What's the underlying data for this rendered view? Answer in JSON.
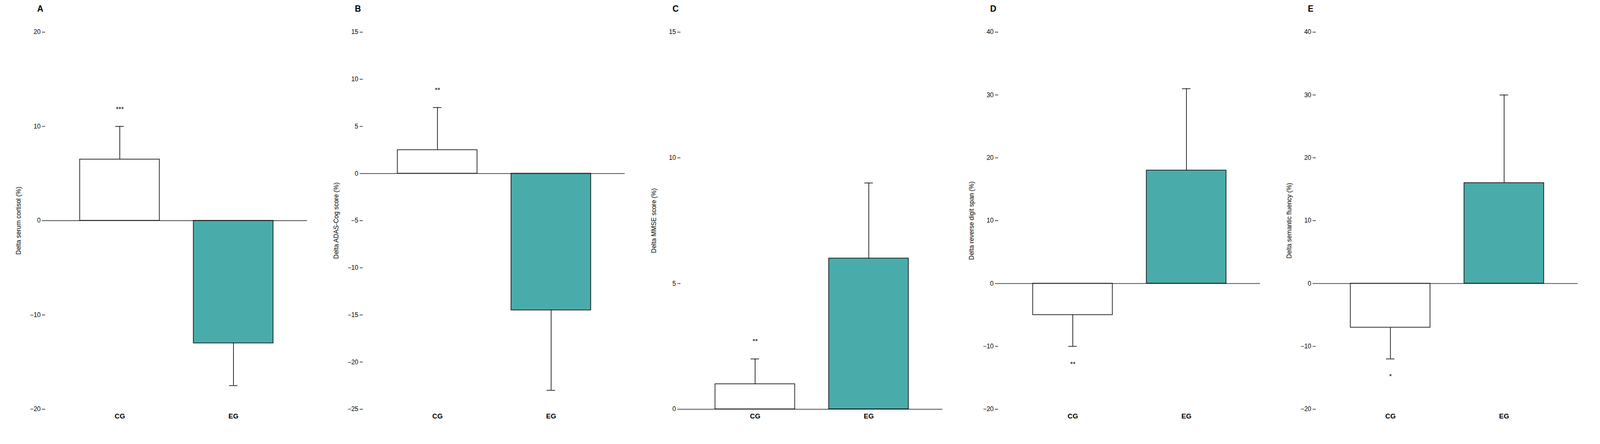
{
  "chart_data": [
    {
      "type": "bar",
      "title": "A",
      "ylabel": "Delta serum cortisol (%)",
      "categories": [
        "CG",
        "EG"
      ],
      "values": [
        6.5,
        -13.0
      ],
      "errors": [
        3.5,
        4.5
      ],
      "colors": [
        "#ffffff",
        "#4aacaa"
      ],
      "annotations": [
        {
          "x": "CG",
          "text": "***"
        }
      ],
      "ylim": [
        -20,
        20
      ],
      "yticks": [
        -20,
        -10,
        0,
        10,
        20
      ],
      "grid": false
    },
    {
      "type": "bar",
      "title": "B",
      "ylabel": "Delta ADAS-Cog score (%)",
      "categories": [
        "CG",
        "EG"
      ],
      "values": [
        2.5,
        -14.5
      ],
      "errors": [
        4.5,
        8.5
      ],
      "colors": [
        "#ffffff",
        "#4aacaa"
      ],
      "annotations": [
        {
          "x": "CG",
          "text": "**"
        }
      ],
      "ylim": [
        -25,
        15
      ],
      "yticks": [
        -25,
        -20,
        -15,
        -10,
        -5,
        0,
        5,
        10,
        15
      ],
      "grid": false
    },
    {
      "type": "bar",
      "title": "C",
      "ylabel": "Delta MMSE score (%)",
      "categories": [
        "CG",
        "EG"
      ],
      "values": [
        1.0,
        6.0
      ],
      "errors": [
        1.0,
        3.0
      ],
      "colors": [
        "#ffffff",
        "#4aacaa"
      ],
      "annotations": [
        {
          "x": "CG",
          "text": "**"
        }
      ],
      "ylim": [
        0,
        15
      ],
      "yticks": [
        0,
        5,
        10,
        15
      ],
      "grid": false
    },
    {
      "type": "bar",
      "title": "D",
      "ylabel": "Delta reverse digit span (%)",
      "categories": [
        "CG",
        "EG"
      ],
      "values": [
        -5.0,
        18.0
      ],
      "errors": [
        5.0,
        13.0
      ],
      "colors": [
        "#ffffff",
        "#4aacaa"
      ],
      "annotations": [
        {
          "x": "CG",
          "text": "**"
        }
      ],
      "ylim": [
        -20,
        40
      ],
      "yticks": [
        -20,
        -10,
        0,
        10,
        20,
        30,
        40
      ],
      "grid": false
    },
    {
      "type": "bar",
      "title": "E",
      "ylabel": "Delta semantic fluency (%)",
      "categories": [
        "CG",
        "EG"
      ],
      "values": [
        -7.0,
        16.0
      ],
      "errors": [
        5.0,
        14.0
      ],
      "colors": [
        "#ffffff",
        "#4aacaa"
      ],
      "annotations": [
        {
          "x": "CG",
          "text": "*"
        }
      ],
      "ylim": [
        -20,
        40
      ],
      "yticks": [
        -20,
        -10,
        0,
        10,
        20,
        30,
        40
      ],
      "grid": false
    }
  ]
}
